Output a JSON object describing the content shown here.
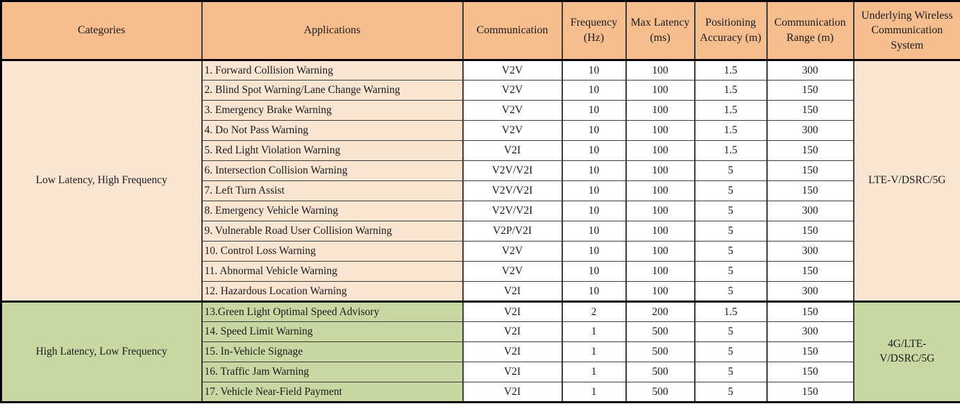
{
  "colors": {
    "header_bg": "#F6BE8F",
    "peach_bg": "#FAE5D2",
    "green_bg": "#C9D8A2",
    "data_cell_bg": "#FFFFFF",
    "grid_line": "#3b3b3b",
    "outer_border": "#000000",
    "text": "#1a1a1a"
  },
  "chart_data": {
    "type": "table",
    "title": "V2X Applications and Communication Requirements"
  },
  "table": {
    "headers": [
      "Categories",
      "Applications",
      "Communication",
      "Frequency (Hz)",
      "Max Latency (ms)",
      "Positioning Accuracy (m)",
      "Communication Range (m)",
      "Underlying Wireless Communication System"
    ],
    "column_keys": [
      "communication",
      "frequency",
      "max_latency",
      "positioning_accuracy",
      "communication_range"
    ],
    "groups": [
      {
        "category": "Low Latency, High Frequency",
        "system": "LTE-V/DSRC/5G",
        "theme": "peach",
        "rows": [
          {
            "application": "1. Forward Collision Warning",
            "communication": "V2V",
            "frequency": "10",
            "max_latency": "100",
            "positioning_accuracy": "1.5",
            "communication_range": "300"
          },
          {
            "application": "2. Blind Spot Warning/Lane Change Warning",
            "communication": "V2V",
            "frequency": "10",
            "max_latency": "100",
            "positioning_accuracy": "1.5",
            "communication_range": "150"
          },
          {
            "application": "3. Emergency Brake Warning",
            "communication": "V2V",
            "frequency": "10",
            "max_latency": "100",
            "positioning_accuracy": "1.5",
            "communication_range": "150"
          },
          {
            "application": "4. Do Not Pass Warning",
            "communication": "V2V",
            "frequency": "10",
            "max_latency": "100",
            "positioning_accuracy": "1.5",
            "communication_range": "300"
          },
          {
            "application": "5. Red Light Violation Warning",
            "communication": "V2I",
            "frequency": "10",
            "max_latency": "100",
            "positioning_accuracy": "1.5",
            "communication_range": "150"
          },
          {
            "application": "6. Intersection Collision Warning",
            "communication": "V2V/V2I",
            "frequency": "10",
            "max_latency": "100",
            "positioning_accuracy": "5",
            "communication_range": "150"
          },
          {
            "application": "7. Left Turn Assist",
            "communication": "V2V/V2I",
            "frequency": "10",
            "max_latency": "100",
            "positioning_accuracy": "5",
            "communication_range": "150"
          },
          {
            "application": "8. Emergency Vehicle Warning",
            "communication": "V2V/V2I",
            "frequency": "10",
            "max_latency": "100",
            "positioning_accuracy": "5",
            "communication_range": "300"
          },
          {
            "application": "9. Vulnerable Road User Collision Warning",
            "communication": "V2P/V2I",
            "frequency": "10",
            "max_latency": "100",
            "positioning_accuracy": "5",
            "communication_range": "150"
          },
          {
            "application": "10. Control Loss Warning",
            "communication": "V2V",
            "frequency": "10",
            "max_latency": "100",
            "positioning_accuracy": "5",
            "communication_range": "300"
          },
          {
            "application": "11. Abnormal Vehicle Warning",
            "communication": "V2V",
            "frequency": "10",
            "max_latency": "100",
            "positioning_accuracy": "5",
            "communication_range": "150"
          },
          {
            "application": "12. Hazardous Location Warning",
            "communication": "V2I",
            "frequency": "10",
            "max_latency": "100",
            "positioning_accuracy": "5",
            "communication_range": "300"
          }
        ]
      },
      {
        "category": "High Latency, Low Frequency",
        "system": "4G/LTE-V/DSRC/5G",
        "theme": "green",
        "rows": [
          {
            "application": "13.Green Light Optimal Speed Advisory",
            "communication": "V2I",
            "frequency": "2",
            "max_latency": "200",
            "positioning_accuracy": "1.5",
            "communication_range": "150"
          },
          {
            "application": "14. Speed Limit Warning",
            "communication": "V2I",
            "frequency": "1",
            "max_latency": "500",
            "positioning_accuracy": "5",
            "communication_range": "300"
          },
          {
            "application": "15. In-Vehicle Signage",
            "communication": "V2I",
            "frequency": "1",
            "max_latency": "500",
            "positioning_accuracy": "5",
            "communication_range": "150"
          },
          {
            "application": "16. Traffic Jam Warning",
            "communication": "V2I",
            "frequency": "1",
            "max_latency": "500",
            "positioning_accuracy": "5",
            "communication_range": "150"
          },
          {
            "application": "17. Vehicle Near-Field Payment",
            "communication": "V2I",
            "frequency": "1",
            "max_latency": "500",
            "positioning_accuracy": "5",
            "communication_range": "150"
          }
        ]
      }
    ]
  }
}
